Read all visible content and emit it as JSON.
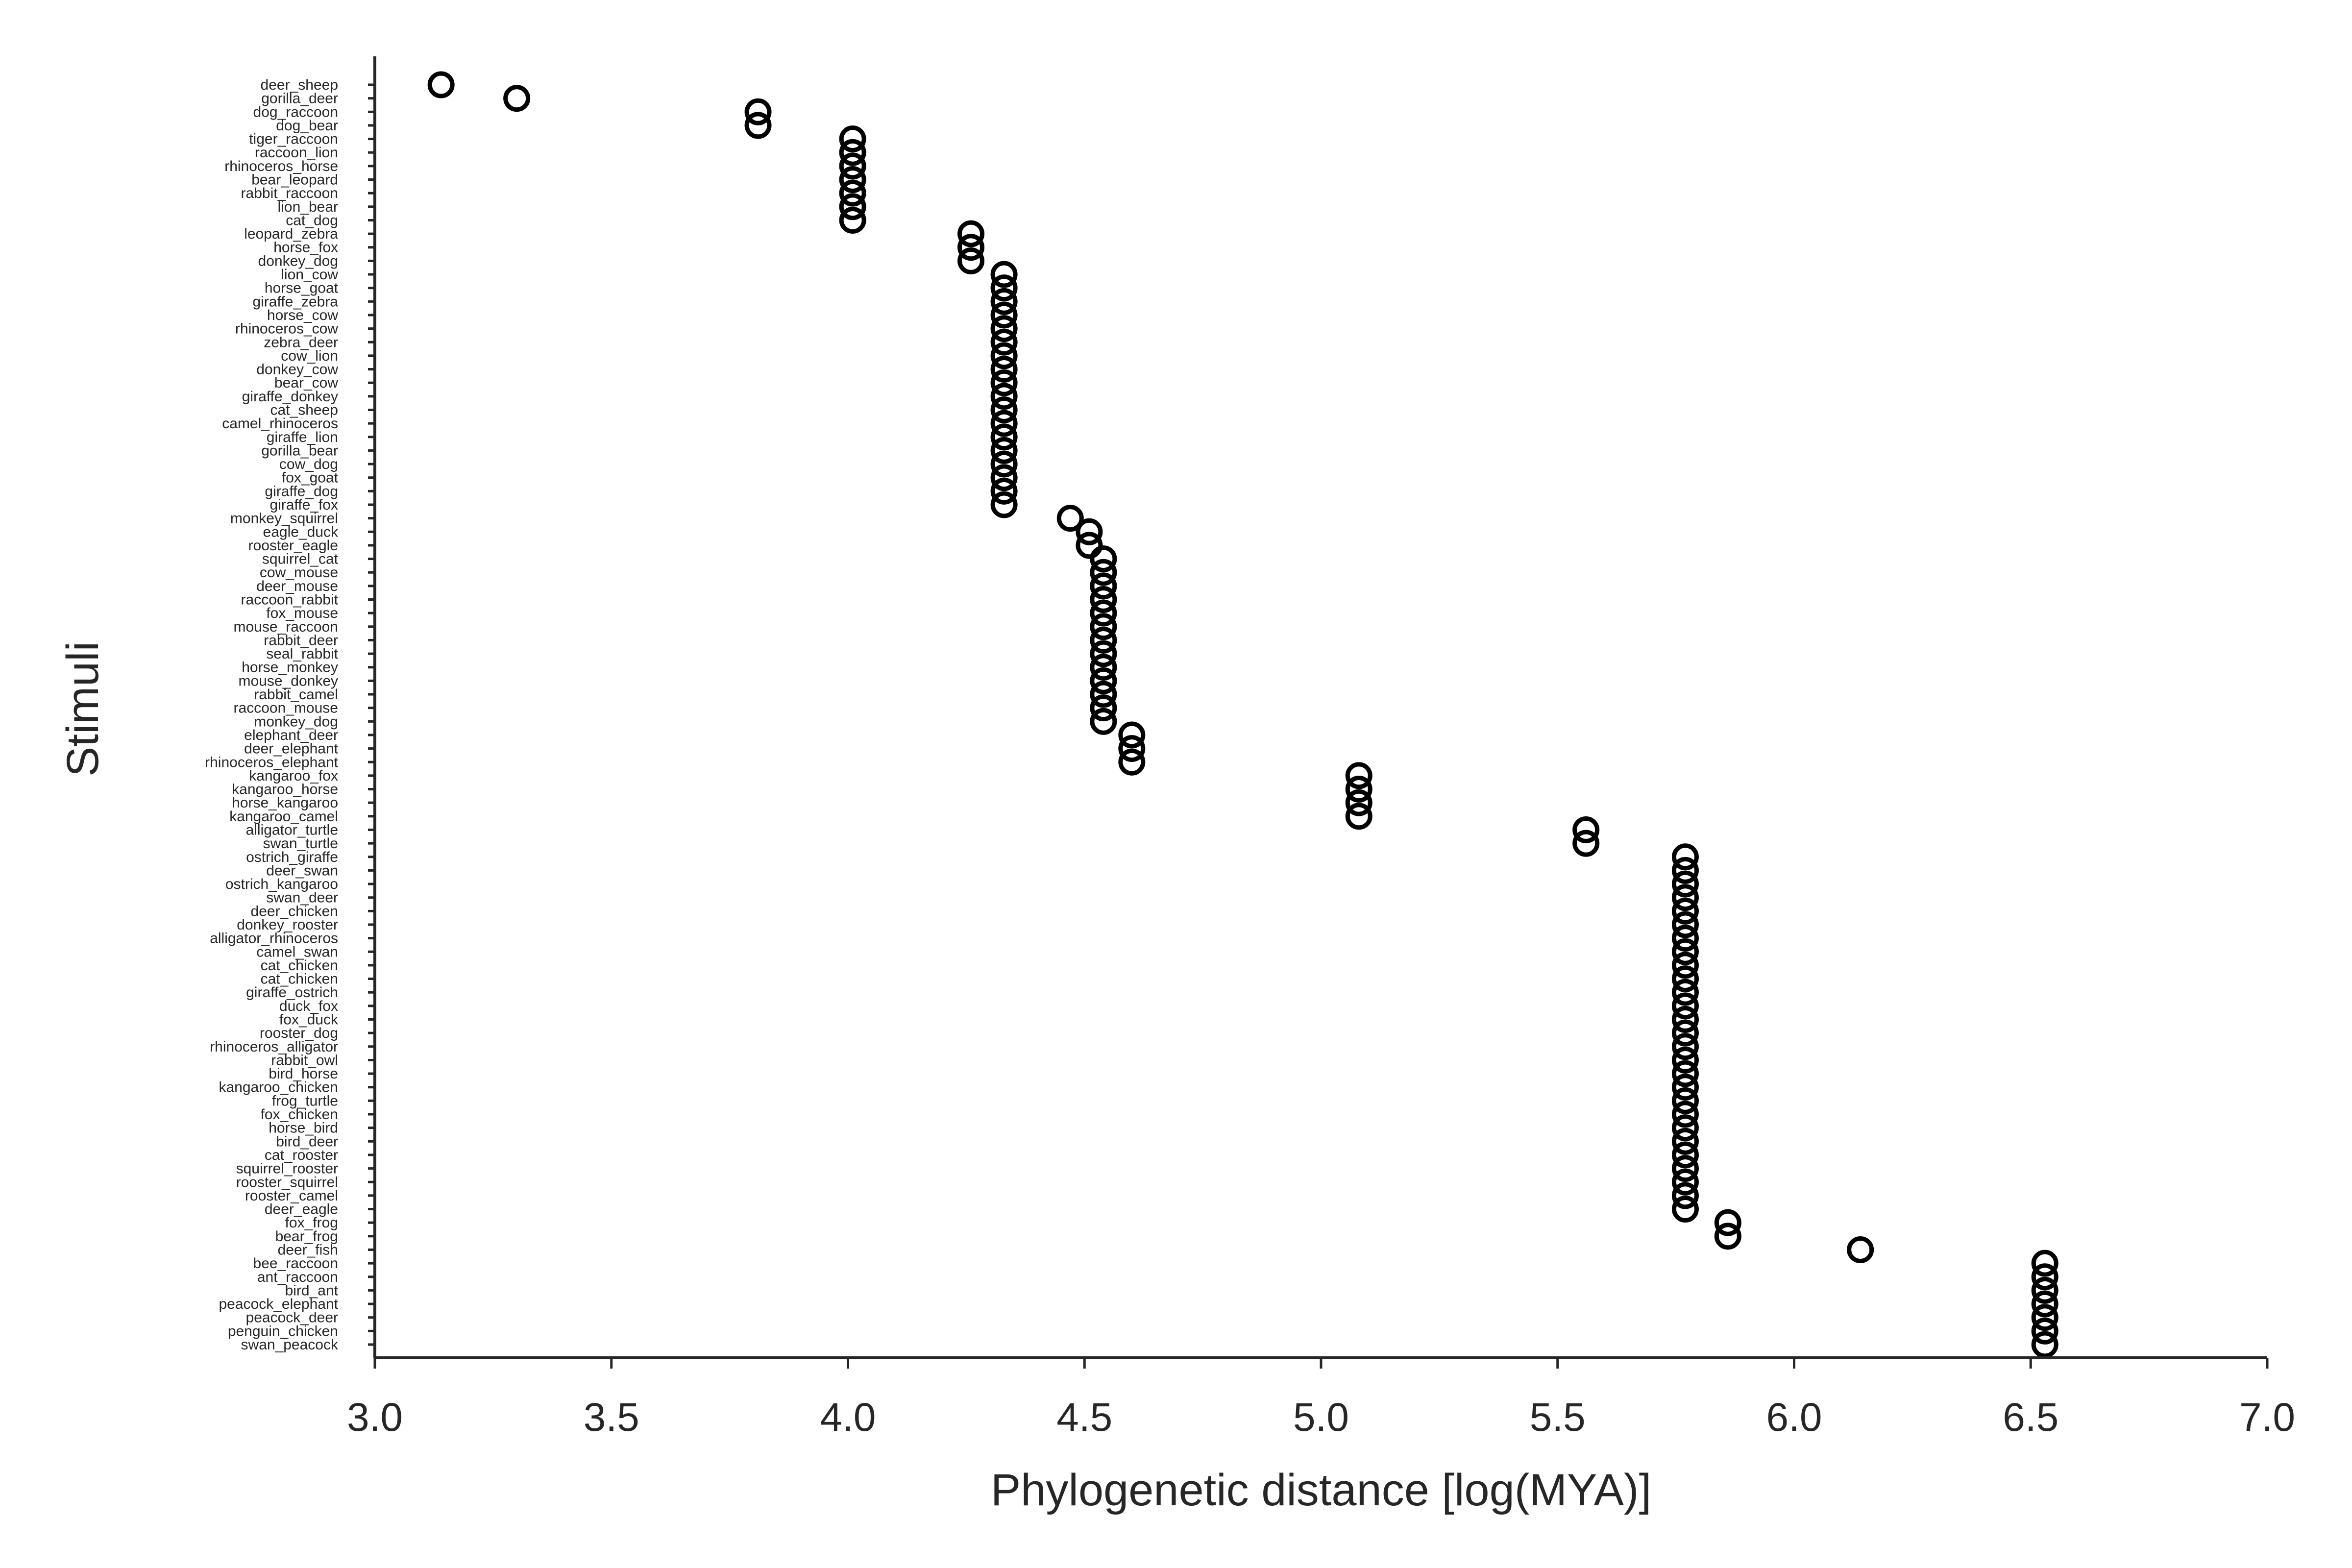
{
  "chart_data": {
    "type": "scatter",
    "title": "",
    "xlabel": "Phylogenetic distance [log(MYA)]",
    "ylabel": "Stimuli",
    "xlim": [
      3.0,
      7.0
    ],
    "xticks": [
      "3.0",
      "3.5",
      "4.0",
      "4.5",
      "5.0",
      "5.5",
      "6.0",
      "6.5",
      "7.0"
    ],
    "grid": false,
    "legend": "none",
    "marker": "open-circle",
    "colors": {
      "axis": "#262626",
      "marker": "#000000",
      "background": "#ffffff"
    },
    "points": [
      {
        "label": "deer_sheep",
        "x": 3.14
      },
      {
        "label": "gorilla_deer",
        "x": 3.3
      },
      {
        "label": "dog_raccoon",
        "x": 3.81
      },
      {
        "label": "dog_bear",
        "x": 3.81
      },
      {
        "label": "tiger_raccoon",
        "x": 4.01
      },
      {
        "label": "raccoon_lion",
        "x": 4.01
      },
      {
        "label": "rhinoceros_horse",
        "x": 4.01
      },
      {
        "label": "bear_leopard",
        "x": 4.01
      },
      {
        "label": "rabbit_raccoon",
        "x": 4.01
      },
      {
        "label": "lion_bear",
        "x": 4.01
      },
      {
        "label": "cat_dog",
        "x": 4.01
      },
      {
        "label": "leopard_zebra",
        "x": 4.26
      },
      {
        "label": "horse_fox",
        "x": 4.26
      },
      {
        "label": "donkey_dog",
        "x": 4.26
      },
      {
        "label": "lion_cow",
        "x": 4.33
      },
      {
        "label": "horse_goat",
        "x": 4.33
      },
      {
        "label": "giraffe_zebra",
        "x": 4.33
      },
      {
        "label": "horse_cow",
        "x": 4.33
      },
      {
        "label": "rhinoceros_cow",
        "x": 4.33
      },
      {
        "label": "zebra_deer",
        "x": 4.33
      },
      {
        "label": "cow_lion",
        "x": 4.33
      },
      {
        "label": "donkey_cow",
        "x": 4.33
      },
      {
        "label": "bear_cow",
        "x": 4.33
      },
      {
        "label": "giraffe_donkey",
        "x": 4.33
      },
      {
        "label": "cat_sheep",
        "x": 4.33
      },
      {
        "label": "camel_rhinoceros",
        "x": 4.33
      },
      {
        "label": "giraffe_lion",
        "x": 4.33
      },
      {
        "label": "gorilla_bear",
        "x": 4.33
      },
      {
        "label": "cow_dog",
        "x": 4.33
      },
      {
        "label": "fox_goat",
        "x": 4.33
      },
      {
        "label": "giraffe_dog",
        "x": 4.33
      },
      {
        "label": "giraffe_fox",
        "x": 4.33
      },
      {
        "label": "monkey_squirrel",
        "x": 4.47
      },
      {
        "label": "eagle_duck",
        "x": 4.51
      },
      {
        "label": "rooster_eagle",
        "x": 4.51
      },
      {
        "label": "squirrel_cat",
        "x": 4.54
      },
      {
        "label": "cow_mouse",
        "x": 4.54
      },
      {
        "label": "deer_mouse",
        "x": 4.54
      },
      {
        "label": "raccoon_rabbit",
        "x": 4.54
      },
      {
        "label": "fox_mouse",
        "x": 4.54
      },
      {
        "label": "mouse_raccoon",
        "x": 4.54
      },
      {
        "label": "rabbit_deer",
        "x": 4.54
      },
      {
        "label": "seal_rabbit",
        "x": 4.54
      },
      {
        "label": "horse_monkey",
        "x": 4.54
      },
      {
        "label": "mouse_donkey",
        "x": 4.54
      },
      {
        "label": "rabbit_camel",
        "x": 4.54
      },
      {
        "label": "raccoon_mouse",
        "x": 4.54
      },
      {
        "label": "monkey_dog",
        "x": 4.54
      },
      {
        "label": "elephant_deer",
        "x": 4.6
      },
      {
        "label": "deer_elephant",
        "x": 4.6
      },
      {
        "label": "rhinoceros_elephant",
        "x": 4.6
      },
      {
        "label": "kangaroo_fox",
        "x": 5.08
      },
      {
        "label": "kangaroo_horse",
        "x": 5.08
      },
      {
        "label": "horse_kangaroo",
        "x": 5.08
      },
      {
        "label": "kangaroo_camel",
        "x": 5.08
      },
      {
        "label": "alligator_turtle",
        "x": 5.56
      },
      {
        "label": "swan_turtle",
        "x": 5.56
      },
      {
        "label": "ostrich_giraffe",
        "x": 5.77
      },
      {
        "label": "deer_swan",
        "x": 5.77
      },
      {
        "label": "ostrich_kangaroo",
        "x": 5.77
      },
      {
        "label": "swan_deer",
        "x": 5.77
      },
      {
        "label": "deer_chicken",
        "x": 5.77
      },
      {
        "label": "donkey_rooster",
        "x": 5.77
      },
      {
        "label": "alligator_rhinoceros",
        "x": 5.77
      },
      {
        "label": "camel_swan",
        "x": 5.77
      },
      {
        "label": "cat_chicken",
        "x": 5.77
      },
      {
        "label": "cat_chicken",
        "x": 5.77
      },
      {
        "label": "giraffe_ostrich",
        "x": 5.77
      },
      {
        "label": "duck_fox",
        "x": 5.77
      },
      {
        "label": "fox_duck",
        "x": 5.77
      },
      {
        "label": "rooster_dog",
        "x": 5.77
      },
      {
        "label": "rhinoceros_alligator",
        "x": 5.77
      },
      {
        "label": "rabbit_owl",
        "x": 5.77
      },
      {
        "label": "bird_horse",
        "x": 5.77
      },
      {
        "label": "kangaroo_chicken",
        "x": 5.77
      },
      {
        "label": "frog_turtle",
        "x": 5.77
      },
      {
        "label": "fox_chicken",
        "x": 5.77
      },
      {
        "label": "horse_bird",
        "x": 5.77
      },
      {
        "label": "bird_deer",
        "x": 5.77
      },
      {
        "label": "cat_rooster",
        "x": 5.77
      },
      {
        "label": "squirrel_rooster",
        "x": 5.77
      },
      {
        "label": "rooster_squirrel",
        "x": 5.77
      },
      {
        "label": "rooster_camel",
        "x": 5.77
      },
      {
        "label": "deer_eagle",
        "x": 5.77
      },
      {
        "label": "fox_frog",
        "x": 5.86
      },
      {
        "label": "bear_frog",
        "x": 5.86
      },
      {
        "label": "deer_fish",
        "x": 6.14
      },
      {
        "label": "bee_raccoon",
        "x": 6.53
      },
      {
        "label": "ant_raccoon",
        "x": 6.53
      },
      {
        "label": "bird_ant",
        "x": 6.53
      },
      {
        "label": "peacock_elephant",
        "x": 6.53
      },
      {
        "label": "peacock_deer",
        "x": 6.53
      },
      {
        "label": "penguin_chicken",
        "x": 6.53
      },
      {
        "label": "swan_peacock",
        "x": 6.53
      }
    ]
  }
}
